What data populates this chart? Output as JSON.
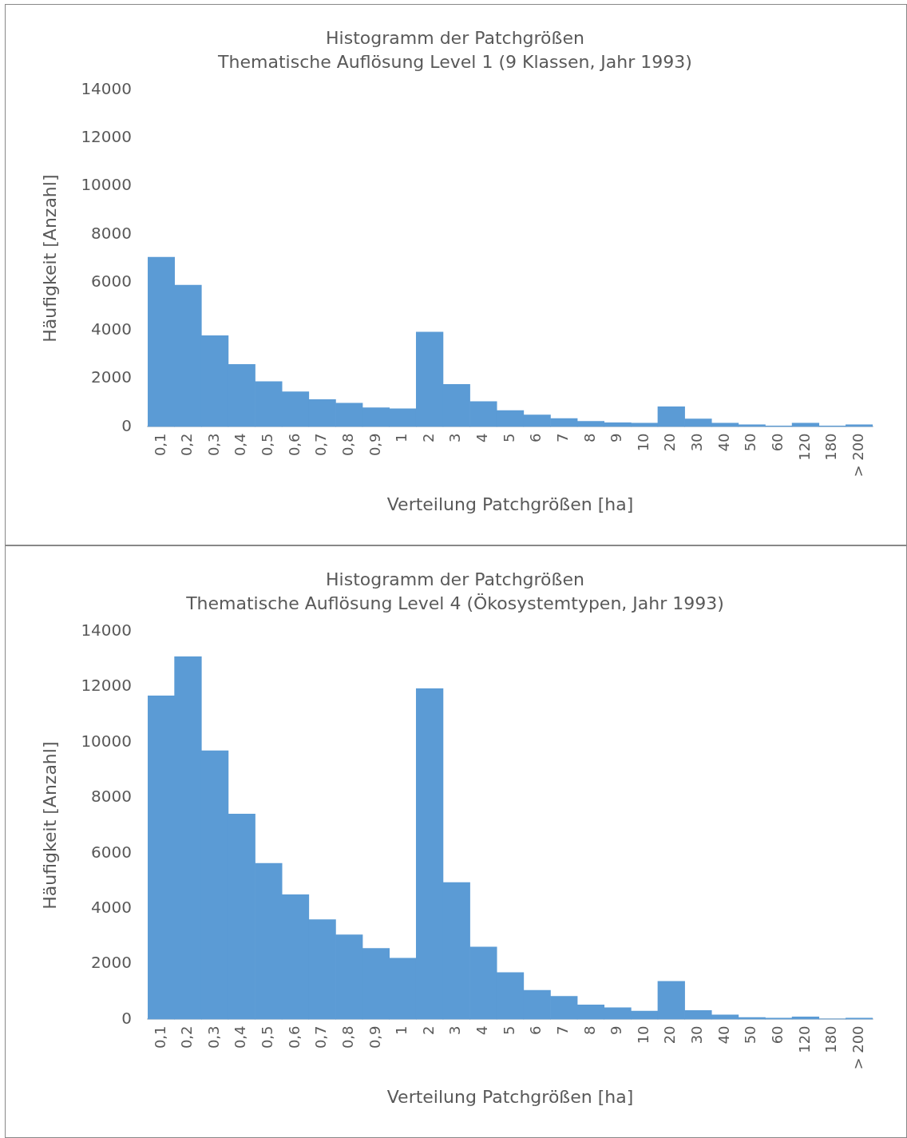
{
  "chart_data": [
    {
      "type": "bar",
      "title": "Histogramm der Patchgrößen",
      "subtitle": "Thematische Auflösung Level 1 (9 Klassen, Jahr 1993)",
      "xlabel": "Verteilung Patchgrößen [ha]",
      "ylabel": "Häufigkeit [Anzahl]",
      "categories": [
        "0,1",
        "0,2",
        "0,3",
        "0,4",
        "0,5",
        "0,6",
        "0,7",
        "0,8",
        "0,9",
        "1",
        "2",
        "3",
        "4",
        "5",
        "6",
        "7",
        "8",
        "9",
        "10",
        "20",
        "30",
        "40",
        "50",
        "60",
        "120",
        "180",
        "> 200"
      ],
      "values": [
        7050,
        5890,
        3790,
        2590,
        1880,
        1460,
        1130,
        980,
        790,
        750,
        3940,
        1760,
        1050,
        680,
        490,
        340,
        230,
        170,
        150,
        830,
        330,
        150,
        90,
        40,
        150,
        40,
        90
      ],
      "color": "#5b9bd5",
      "ylim": [
        0,
        14000
      ],
      "yticks": [
        0,
        2000,
        4000,
        6000,
        8000,
        10000,
        12000,
        14000
      ],
      "grid": false,
      "legend": false
    },
    {
      "type": "bar",
      "title": "Histogramm der Patchgrößen",
      "subtitle": "Thematische Auflösung Level 4 (Ökosystemtypen, Jahr 1993)",
      "xlabel": "Verteilung Patchgrößen [ha]",
      "ylabel": "Häufigkeit [Anzahl]",
      "categories": [
        "0,1",
        "0,2",
        "0,3",
        "0,4",
        "0,5",
        "0,6",
        "0,7",
        "0,8",
        "0,9",
        "1",
        "2",
        "3",
        "4",
        "5",
        "6",
        "7",
        "8",
        "9",
        "10",
        "20",
        "30",
        "40",
        "50",
        "60",
        "120",
        "180",
        "> 200"
      ],
      "values": [
        11680,
        13090,
        9700,
        7410,
        5630,
        4500,
        3600,
        3050,
        2560,
        2210,
        11940,
        4940,
        2610,
        1690,
        1050,
        830,
        520,
        420,
        300,
        1370,
        320,
        160,
        70,
        50,
        90,
        20,
        50
      ],
      "color": "#5b9bd5",
      "ylim": [
        0,
        14000
      ],
      "yticks": [
        0,
        2000,
        4000,
        6000,
        8000,
        10000,
        12000,
        14000
      ],
      "grid": false,
      "legend": false
    }
  ]
}
